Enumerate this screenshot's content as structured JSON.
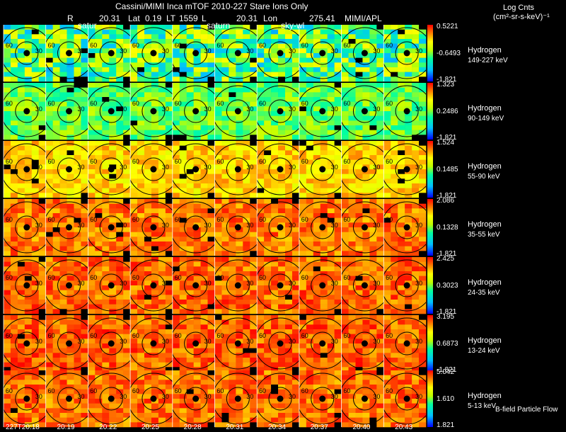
{
  "header": {
    "title": "Cassini/MIMI Inca mTOF  2010-227   Stare    Ions Only",
    "r_label": "R",
    "r_value": "20.31",
    "lat_label": "Lat",
    "lat_value": "0.19",
    "lt_label": "LT",
    "lt_value": "1559",
    "l_label": "L",
    "l_value": "20.31",
    "lon_label": "Lon",
    "lon_value": "275.41",
    "institution": "MIMI/APL",
    "overlay_left": "satur",
    "overlay_mid": "saturn",
    "overlay_right": "sky-wl"
  },
  "colorbar_title": {
    "line1": "Log Cnts",
    "line2": "(cm²-sr-s-keV)⁻¹"
  },
  "footer_note": "B-field Particle Flow",
  "chart_data": {
    "type": "heatmap",
    "columns": 10,
    "time_labels": [
      "227T20:18",
      "20:19",
      "20:22",
      "20:25",
      "20:28",
      "20:31",
      "20:34",
      "20:37",
      "20:40",
      "20:43"
    ],
    "contour_labels": [
      "30",
      "60",
      "90"
    ],
    "rows": [
      {
        "species": "Hydrogen",
        "energy": "149-227 keV",
        "max": "0.5221",
        "mid": "-0.6493",
        "min": "-1.821",
        "level": 0.45
      },
      {
        "species": "Hydrogen",
        "energy": "90-149 keV",
        "max": "1.323",
        "mid": "0.2486",
        "min": "-1.821",
        "level": 0.48
      },
      {
        "species": "Hydrogen",
        "energy": "55-90 keV",
        "max": "1.524",
        "mid": "0.1485",
        "min": "-1.821",
        "level": 0.74
      },
      {
        "species": "Hydrogen",
        "energy": "35-55 keV",
        "max": "2.086",
        "mid": "0.1328",
        "min": "-1.821",
        "level": 0.86
      },
      {
        "species": "Hydrogen",
        "energy": "24-35 keV",
        "max": "2.425",
        "mid": "0.3023",
        "min": "-1.821",
        "level": 0.88
      },
      {
        "species": "Hydrogen",
        "energy": "13-24 keV",
        "max": "3.195",
        "mid": "0.6873",
        "min": "-1.821",
        "level": 0.89
      },
      {
        "species": "Hydrogen",
        "energy": "5-13 keV",
        "max": "5.042",
        "mid": "1.610",
        "min": "1.821",
        "level": 0.87
      }
    ]
  }
}
